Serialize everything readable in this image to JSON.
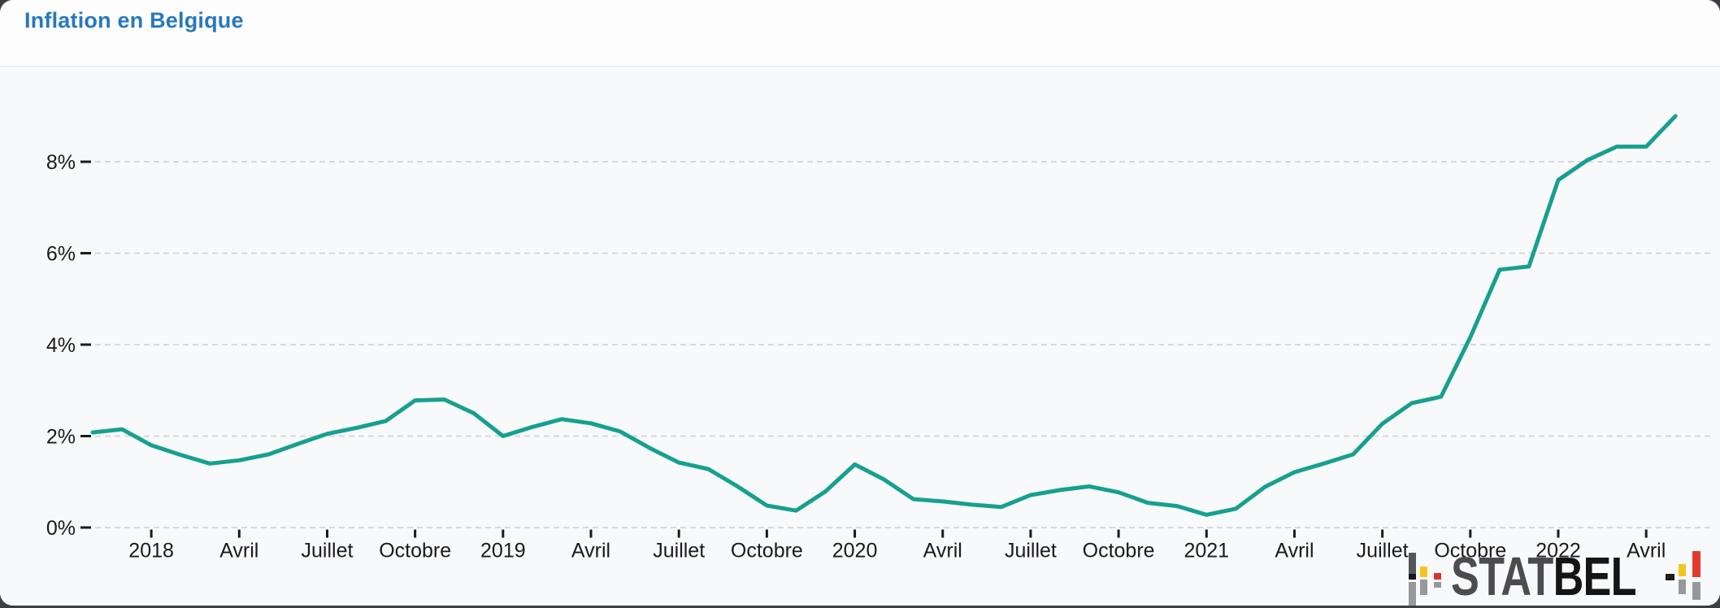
{
  "header": {
    "title": "Inflation en Belgique"
  },
  "chart_data": {
    "type": "line",
    "title": "Inflation en Belgique",
    "series_name": "Inflation",
    "unit": "%",
    "grid": "dashed-horizontal",
    "legend": "none",
    "line_color": "#16A090",
    "ylim": [
      0,
      9.5
    ],
    "y_axis": {
      "ticks": [
        {
          "label": "0%",
          "value": 0
        },
        {
          "label": "2%",
          "value": 2
        },
        {
          "label": "4%",
          "value": 4
        },
        {
          "label": "6%",
          "value": 6
        },
        {
          "label": "8%",
          "value": 8
        }
      ]
    },
    "x_axis": {
      "ticks": [
        {
          "label": "2018",
          "month_index": 2
        },
        {
          "label": "Avril",
          "month_index": 5
        },
        {
          "label": "Juillet",
          "month_index": 8
        },
        {
          "label": "Octobre",
          "month_index": 11
        },
        {
          "label": "2019",
          "month_index": 14
        },
        {
          "label": "Avril",
          "month_index": 17
        },
        {
          "label": "Juillet",
          "month_index": 20
        },
        {
          "label": "Octobre",
          "month_index": 23
        },
        {
          "label": "2020",
          "month_index": 26
        },
        {
          "label": "Avril",
          "month_index": 29
        },
        {
          "label": "Juillet",
          "month_index": 32
        },
        {
          "label": "Octobre",
          "month_index": 35
        },
        {
          "label": "2021",
          "month_index": 38
        },
        {
          "label": "Avril",
          "month_index": 41
        },
        {
          "label": "Juillet",
          "month_index": 44
        },
        {
          "label": "Octobre",
          "month_index": 47
        },
        {
          "label": "2022",
          "month_index": 50
        },
        {
          "label": "Avril",
          "month_index": 53
        }
      ]
    },
    "months": [
      "2017-11",
      "2017-12",
      "2018-01",
      "2018-02",
      "2018-03",
      "2018-04",
      "2018-05",
      "2018-06",
      "2018-07",
      "2018-08",
      "2018-09",
      "2018-10",
      "2018-11",
      "2018-12",
      "2019-01",
      "2019-02",
      "2019-03",
      "2019-04",
      "2019-05",
      "2019-06",
      "2019-07",
      "2019-08",
      "2019-09",
      "2019-10",
      "2019-11",
      "2019-12",
      "2020-01",
      "2020-02",
      "2020-03",
      "2020-04",
      "2020-05",
      "2020-06",
      "2020-07",
      "2020-08",
      "2020-09",
      "2020-10",
      "2020-11",
      "2020-12",
      "2021-01",
      "2021-02",
      "2021-03",
      "2021-04",
      "2021-05",
      "2021-06",
      "2021-07",
      "2021-08",
      "2021-09",
      "2021-10",
      "2021-11",
      "2021-12",
      "2022-01",
      "2022-02",
      "2022-03",
      "2022-04",
      "2022-05"
    ],
    "values": [
      2.08,
      2.15,
      1.8,
      1.59,
      1.4,
      1.47,
      1.6,
      1.83,
      2.05,
      2.18,
      2.33,
      2.78,
      2.8,
      2.5,
      2.0,
      2.2,
      2.37,
      2.28,
      2.1,
      1.74,
      1.42,
      1.28,
      0.9,
      0.48,
      0.37,
      0.79,
      1.38,
      1.05,
      0.62,
      0.57,
      0.5,
      0.45,
      0.71,
      0.82,
      0.9,
      0.77,
      0.54,
      0.47,
      0.28,
      0.41,
      0.89,
      1.21,
      1.4,
      1.6,
      2.27,
      2.72,
      2.86,
      4.16,
      5.64,
      5.71,
      7.6,
      8.04,
      8.33,
      8.33,
      9.0
    ]
  },
  "logo": {
    "stat": "STAT",
    "bel": "BEL"
  },
  "colors": {
    "title": "#2878BE",
    "line": "#16A090",
    "gridline": "#d8d8d8",
    "axis_text": "#1b1b1b",
    "panel_bg": "#f8f9fb",
    "header_bg": "#fdfdfe",
    "logo_yellow": "#F6C41C",
    "logo_red": "#D6352B",
    "logo_gray": "#96989c",
    "logo_dark": "#54565a"
  }
}
